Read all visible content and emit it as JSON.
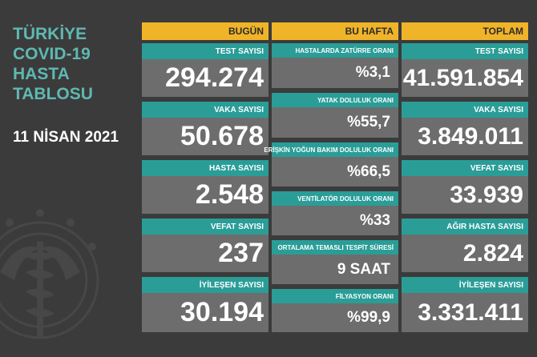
{
  "title_lines": [
    "TÜRKİYE",
    "COVID-19",
    "HASTA",
    "TABLOSU"
  ],
  "date": "11 NİSAN 2021",
  "colors": {
    "background": "#3b3b3b",
    "header": "#f0b429",
    "label": "#2a9d97",
    "value_box": "#6d6d6d",
    "title": "#5fb8b2"
  },
  "emblem_icon": "ministry-of-health-emblem-icon",
  "today": {
    "header": "BUGÜN",
    "items": [
      {
        "label": "TEST SAYISI",
        "value": "294.274"
      },
      {
        "label": "VAKA SAYISI",
        "value": "50.678"
      },
      {
        "label": "HASTA SAYISI",
        "value": "2.548"
      },
      {
        "label": "VEFAT SAYISI",
        "value": "237"
      },
      {
        "label": "İYİLEŞEN SAYISI",
        "value": "30.194"
      }
    ]
  },
  "week": {
    "header": "BU HAFTA",
    "items": [
      {
        "label": "HASTALARDA ZATÜRRE ORANI",
        "value": "%3,1"
      },
      {
        "label": "YATAK DOLULUK ORANI",
        "value": "%55,7"
      },
      {
        "label": "ERİŞKİN YOĞUN BAKIM DOLULUK ORANI",
        "value": "%66,5"
      },
      {
        "label": "VENTİLATÖR DOLULUK ORANI",
        "value": "%33"
      },
      {
        "label": "ORTALAMA TEMASLI TESPİT SÜRESİ",
        "value": "9 SAAT"
      },
      {
        "label": "FİLYASYON ORANI",
        "value": "%99,9"
      }
    ]
  },
  "total": {
    "header": "TOPLAM",
    "items": [
      {
        "label": "TEST SAYISI",
        "value": "41.591.854"
      },
      {
        "label": "VAKA SAYISI",
        "value": "3.849.011"
      },
      {
        "label": "VEFAT SAYISI",
        "value": "33.939"
      },
      {
        "label": "AĞIR HASTA SAYISI",
        "value": "2.824"
      },
      {
        "label": "İYİLEŞEN SAYISI",
        "value": "3.331.411"
      }
    ]
  }
}
